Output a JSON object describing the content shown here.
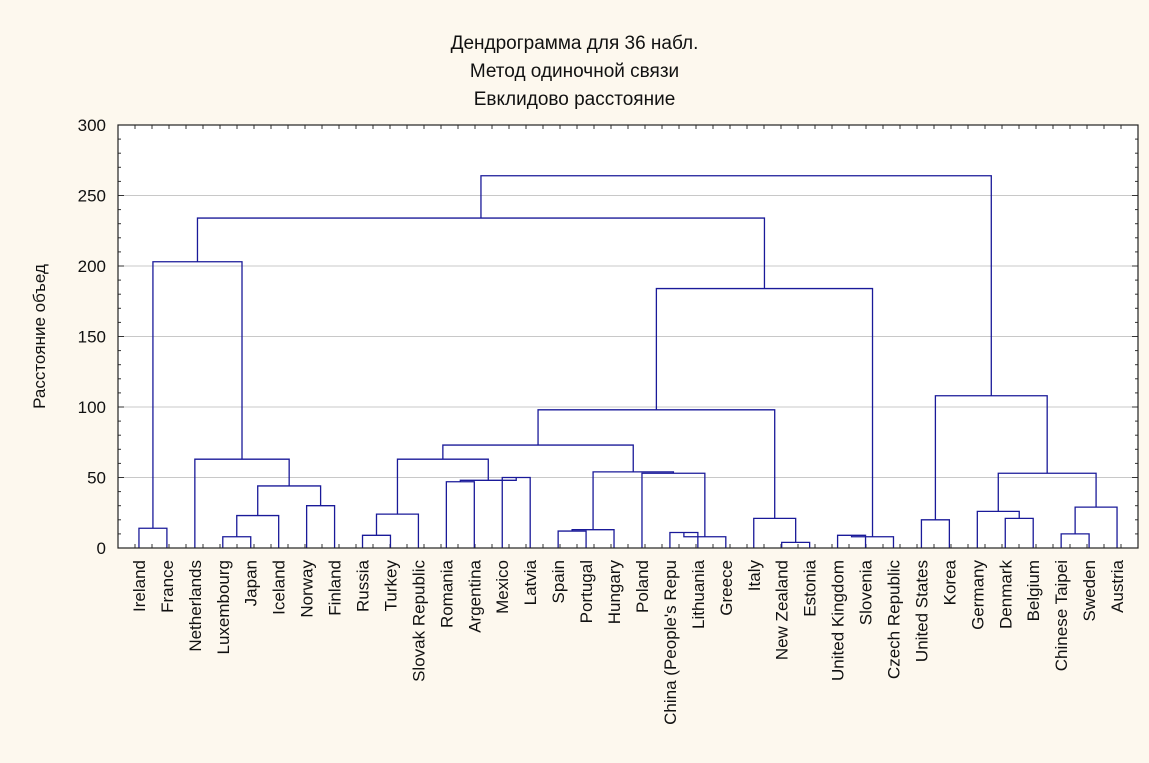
{
  "chart_data": {
    "type": "dendrogram",
    "title": [
      "Дендрограмма для 36 набл.",
      "Метод одиночной связи",
      "Евклидово расстояние"
    ],
    "ylabel": "Расстояние объед",
    "xlabel": "",
    "ylim": [
      0,
      300
    ],
    "yticks": [
      0,
      50,
      100,
      150,
      200,
      250,
      300
    ],
    "grid": true,
    "colors": {
      "background": "#fdf8ee",
      "plot": "#ffffff",
      "lines": "#1a1a99",
      "grid": "#c8c8c8",
      "text": "#111111"
    },
    "leaves": [
      "Ireland",
      "France",
      "Netherlands",
      "Luxembourg",
      "Japan",
      "Iceland",
      "Norway",
      "Finland",
      "Russia",
      "Turkey",
      "Slovak Republic",
      "Romania",
      "Argentina",
      "Mexico",
      "Latvia",
      "Spain",
      "Portugal",
      "Hungary",
      "Poland",
      "China (People's Repu",
      "Lithuania",
      "Greece",
      "Italy",
      "New Zealand",
      "Estonia",
      "United Kingdom",
      "Slovenia",
      "Czech Republic",
      "United States",
      "Korea",
      "Germany",
      "Denmark",
      "Belgium",
      "Chinese Taipei",
      "Sweden",
      "Austria"
    ],
    "merges": [
      {
        "id": "n1",
        "left": "Ireland",
        "right": "France",
        "height": 14
      },
      {
        "id": "n2",
        "left": "Luxembourg",
        "right": "Japan",
        "height": 8
      },
      {
        "id": "n3",
        "left": "n2",
        "right": "Iceland",
        "height": 23
      },
      {
        "id": "n4",
        "left": "Norway",
        "right": "Finland",
        "height": 30
      },
      {
        "id": "n5",
        "left": "n3",
        "right": "n4",
        "height": 44
      },
      {
        "id": "n6",
        "left": "Netherlands",
        "right": "n5",
        "height": 63
      },
      {
        "id": "n7",
        "left": "n1",
        "right": "n6",
        "height": 203
      },
      {
        "id": "n8",
        "left": "Russia",
        "right": "Turkey",
        "height": 9
      },
      {
        "id": "n9",
        "left": "n8",
        "right": "Slovak Republic",
        "height": 24
      },
      {
        "id": "n10",
        "left": "Romania",
        "right": "Argentina",
        "height": 47
      },
      {
        "id": "n11",
        "left": "Mexico",
        "right": "Latvia",
        "height": 50
      },
      {
        "id": "n12",
        "left": "n10",
        "right": "n11",
        "height": 48
      },
      {
        "id": "n13",
        "left": "n9",
        "right": "n12",
        "height": 63
      },
      {
        "id": "n14",
        "left": "Spain",
        "right": "Portugal",
        "height": 12
      },
      {
        "id": "n15",
        "left": "n14",
        "right": "Hungary",
        "height": 13
      },
      {
        "id": "n16",
        "left": "China (People's Repu",
        "right": "Lithuania",
        "height": 11
      },
      {
        "id": "n17",
        "left": "n16",
        "right": "Greece",
        "height": 8
      },
      {
        "id": "n18",
        "left": "Poland",
        "right": "n17",
        "height": 53
      },
      {
        "id": "n19",
        "left": "n15",
        "right": "n18",
        "height": 54
      },
      {
        "id": "n20",
        "left": "n13",
        "right": "n19",
        "height": 73
      },
      {
        "id": "n21",
        "left": "New Zealand",
        "right": "Estonia",
        "height": 4
      },
      {
        "id": "n22",
        "left": "Italy",
        "right": "n21",
        "height": 21
      },
      {
        "id": "n23",
        "left": "n20",
        "right": "n22",
        "height": 98
      },
      {
        "id": "n24",
        "left": "United Kingdom",
        "right": "Slovenia",
        "height": 9
      },
      {
        "id": "n25",
        "left": "n24",
        "right": "Czech Republic",
        "height": 8
      },
      {
        "id": "n26",
        "left": "n23",
        "right": "n25",
        "height": 184
      },
      {
        "id": "n27",
        "left": "n7",
        "right": "n26",
        "height": 234
      },
      {
        "id": "n28",
        "left": "United States",
        "right": "Korea",
        "height": 20
      },
      {
        "id": "n29",
        "left": "Denmark",
        "right": "Belgium",
        "height": 21
      },
      {
        "id": "n30",
        "left": "Germany",
        "right": "n29",
        "height": 26
      },
      {
        "id": "n31",
        "left": "Chinese Taipei",
        "right": "Sweden",
        "height": 10
      },
      {
        "id": "n32",
        "left": "n31",
        "right": "Austria",
        "height": 29
      },
      {
        "id": "n33",
        "left": "n30",
        "right": "n32",
        "height": 53
      },
      {
        "id": "n34",
        "left": "n28",
        "right": "n33",
        "height": 108
      },
      {
        "id": "n35",
        "left": "n27",
        "right": "n34",
        "height": 264
      }
    ]
  }
}
